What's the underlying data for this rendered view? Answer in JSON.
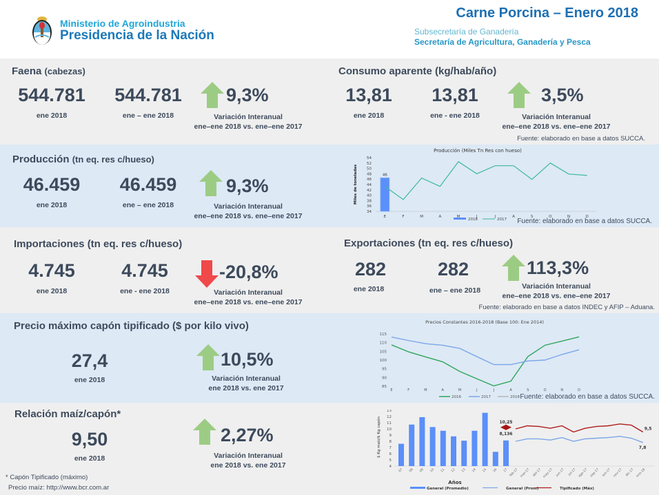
{
  "header": {
    "ministry": "Ministerio de Agroindustria",
    "presidencia": "Presidencia de la Nación",
    "title": "Carne Porcina – Enero 2018",
    "subsecretaria": "Subsecretaría de Ganadería",
    "secretaria": "Secretaría de Agricultura, Ganadería y Pesca"
  },
  "faena": {
    "title": "Faena",
    "unit": "(cabezas)",
    "value_month": "544.781",
    "label_month": "ene  2018",
    "value_cum": "544.781",
    "label_cum": "ene – ene 2018",
    "variation": "9,3%",
    "direction": "up",
    "var_label1": "Variación Interanual",
    "var_label2": "ene–ene 2018 vs. ene–ene 2017"
  },
  "consumo": {
    "title": "Consumo aparente (kg/hab/año)",
    "value_month": "13,81",
    "label_month": "ene 2018",
    "value_cum": "13,81",
    "label_cum": "ene - ene 2018",
    "variation": "3,5%",
    "direction": "up",
    "var_label1": "Variación Interanual",
    "var_label2": "ene–ene 2018 vs. ene–ene 2017",
    "source": "Fuente: elaborado en base a datos SUCCA."
  },
  "produccion": {
    "title": "Producción",
    "unit": "(tn eq. res c/hueso)",
    "value_month": "46.459",
    "label_month": "ene 2018",
    "value_cum": "46.459",
    "label_cum": "ene – ene 2018",
    "variation": "9,3%",
    "direction": "up",
    "var_label1": "Variación Interanual",
    "var_label2": "ene–ene 2018 vs. ene–ene 2017",
    "source": "Fuente: elaborado en base a datos SUCCA."
  },
  "importaciones": {
    "title": "Importaciones (tn eq. res c/hueso)",
    "value_month": "4.745",
    "label_month": "ene 2018",
    "value_cum": "4.745",
    "label_cum": "ene - ene 2018",
    "variation": "-20,8%",
    "direction": "down",
    "var_label1": "Variación Interanual",
    "var_label2": "ene–ene 2018 vs. ene–ene 2017"
  },
  "exportaciones": {
    "title": "Exportaciones (tn eq. res c/hueso)",
    "value_month": "282",
    "label_month": "ene 2018",
    "value_cum": "282",
    "label_cum": "ene – ene 2018",
    "variation": "113,3%",
    "direction": "up",
    "var_label1": "Variación Interanual",
    "var_label2": "ene–ene 2018 vs. ene–ene 2017",
    "source": "Fuente: elaborado en base a datos INDEC y AFIP – Aduana."
  },
  "precio": {
    "title": "Precio máximo capón tipificado ($ por kilo vivo)",
    "value_month": "27,4",
    "label_month": "ene 2018",
    "variation": "10,5%",
    "direction": "up",
    "var_label1": "Variación Interanual",
    "var_label2": "ene 2018 vs. ene 2017",
    "source": "Fuente: elaborado en base a datos SUCCA."
  },
  "relacion": {
    "title": "Relación maíz/capón*",
    "value_month": "9,50",
    "label_month": "ene 2018",
    "variation": "2,27%",
    "direction": "up",
    "var_label1": "Variación Interanual",
    "var_label2": "ene  2018 vs. ene 2017",
    "note1": "* Capón Tipificado (máximo)",
    "note2": "Precio maíz: http://www.bcr.com.ar"
  },
  "colors": {
    "up_arrow": "#9ccc84",
    "down_arrow": "#f0494a",
    "title_blue": "#1d6fb3",
    "text": "#3d4a5c"
  },
  "chart_data": [
    {
      "id": "produccion",
      "type": "bar+line",
      "title": "Producción (Miles Tn Res con hueso)",
      "ylabel": "Miles de toneladas",
      "categories": [
        "E",
        "F",
        "M",
        "A",
        "M",
        "J",
        "J",
        "A",
        "S",
        "O",
        "N",
        "D"
      ],
      "ylim": [
        34,
        54
      ],
      "yticks": [
        34,
        36,
        38,
        40,
        42,
        44,
        46,
        48,
        50,
        52,
        54
      ],
      "series": [
        {
          "name": "2018",
          "kind": "bar",
          "color": "#5b8ff9",
          "values": [
            46.5
          ],
          "labels": [
            "46"
          ]
        },
        {
          "name": "2017",
          "kind": "line",
          "color": "#3cb99a",
          "values": [
            43.3,
            38.4,
            46.4,
            43.3,
            52.5,
            48.0,
            51.0,
            51.0,
            45.9,
            52.0,
            47.9,
            47.4
          ]
        }
      ]
    },
    {
      "id": "precios",
      "type": "line",
      "title": "Precios Constantes 2016-2018 (Base 100: Ene 2014)",
      "categories": [
        "E",
        "F",
        "M",
        "A",
        "M",
        "J",
        "J",
        "A",
        "S",
        "O",
        "N",
        "D"
      ],
      "ylim": [
        85,
        115
      ],
      "yticks": [
        85,
        90,
        95,
        100,
        105,
        110,
        115
      ],
      "series": [
        {
          "name": "2016",
          "color": "#2ea65a",
          "values": [
            108.7,
            104.7,
            101.8,
            99.0,
            93.5,
            89.3,
            85.2,
            87.9,
            102.0,
            108.5,
            110.9,
            113.3
          ]
        },
        {
          "name": "2017",
          "color": "#7aa6e8",
          "values": [
            113.2,
            111.2,
            109.4,
            108.5,
            106.7,
            102.0,
            97.4,
            97.4,
            99.5,
            100.0,
            103.2,
            105.9
          ]
        },
        {
          "name": "2018",
          "color": "#b7b7b7",
          "values": []
        }
      ]
    },
    {
      "id": "relacion",
      "type": "bar+line",
      "ylabel": "$ Kg maíz/$ Kg capón",
      "xlabel": "Años",
      "ylim": [
        4,
        13
      ],
      "yticks": [
        4,
        5,
        6,
        7,
        8,
        9,
        10,
        11,
        12,
        13
      ],
      "bar_categories": [
        "07",
        "08",
        "09",
        "10",
        "11",
        "12",
        "13",
        "14",
        "15",
        "16",
        "17"
      ],
      "line_categories": [
        "feb-17",
        "mar-17",
        "abr-17",
        "may-17",
        "jun-17",
        "jul-17",
        "ago-17",
        "sep-17",
        "oct-17",
        "nov-17",
        "dic-17",
        "ene-18"
      ],
      "series": [
        {
          "name": "General (Promedio)",
          "kind": "bar",
          "color": "#5b8ff9",
          "values": [
            7.6,
            10.7,
            11.9,
            10.3,
            9.7,
            8.8,
            8.1,
            9.7,
            12.6,
            6.3,
            8.136
          ]
        },
        {
          "name": "General (Prom)",
          "kind": "line",
          "color": "#7aa6e8",
          "values": [
            8.0,
            8.4,
            8.4,
            8.2,
            8.6,
            8.0,
            8.4,
            8.5,
            8.6,
            8.8,
            8.5,
            7.8
          ]
        },
        {
          "name": "Tipificado (Máx)",
          "kind": "line",
          "color": "#b01c1c",
          "values": [
            10.0,
            10.5,
            10.4,
            10.1,
            10.5,
            9.5,
            10.1,
            10.4,
            10.5,
            10.8,
            10.6,
            9.5
          ]
        }
      ],
      "annotations": [
        {
          "text": "10,25",
          "at": "17",
          "kind": "diamond",
          "value": 10.25
        },
        {
          "text": "8,136",
          "at": "17"
        },
        {
          "text": "9,5",
          "at": "ene-18"
        },
        {
          "text": "7,8",
          "at": "ene-18"
        }
      ]
    }
  ]
}
